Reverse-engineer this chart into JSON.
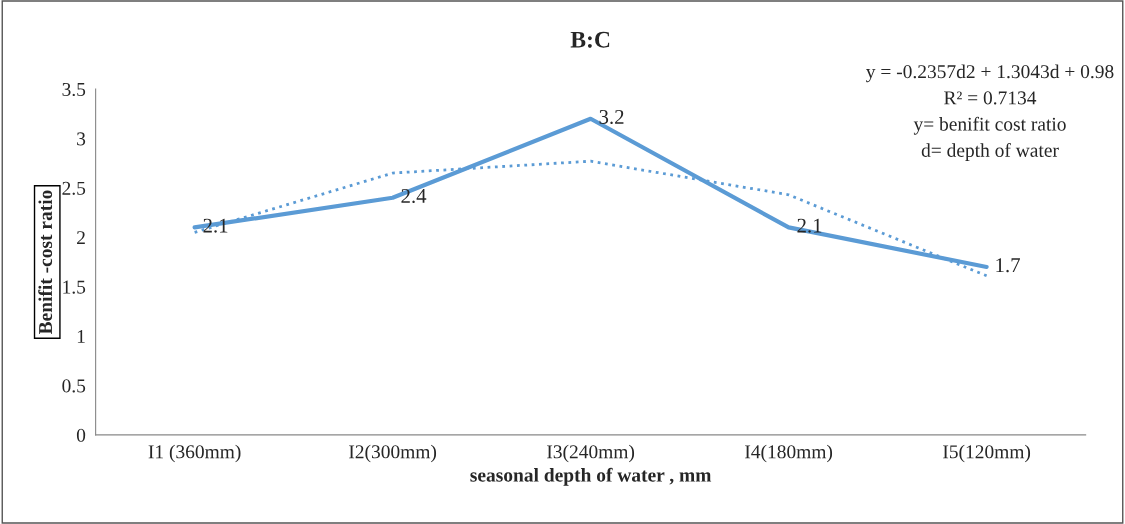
{
  "chart_data": {
    "type": "line",
    "title": "B:C",
    "xlabel": "seasonal depth of water , mm",
    "ylabel": "Benifit -cost ratio",
    "categories": [
      "I1 (360mm)",
      "I2(300mm)",
      "I3(240mm)",
      "I4(180mm)",
      "I5(120mm)"
    ],
    "series": [
      {
        "color": "#5b9bd5",
        "values": [
          2.1,
          2.4,
          3.2,
          2.1,
          1.7
        ],
        "value_labels": [
          "2.1",
          "2.4",
          "3.2",
          "2.1",
          "1.7"
        ],
        "line_style": "solid"
      },
      {
        "type": "line",
        "color": "#5b9bd5",
        "values": [
          2.05,
          2.65,
          2.77,
          2.43,
          1.61
        ],
        "line_style": "dotted"
      }
    ],
    "annotations": [
      "y = -0.2357d2 + 1.3043d + 0.98",
      "R² = 0.7134",
      "y= benifit cost ratio",
      "d= depth of water"
    ],
    "ylim": [
      0,
      3.5
    ],
    "yticks": [
      0,
      0.5,
      1,
      1.5,
      2,
      2.5,
      3,
      3.5
    ],
    "grid": false,
    "legend": false,
    "marker": "none"
  }
}
